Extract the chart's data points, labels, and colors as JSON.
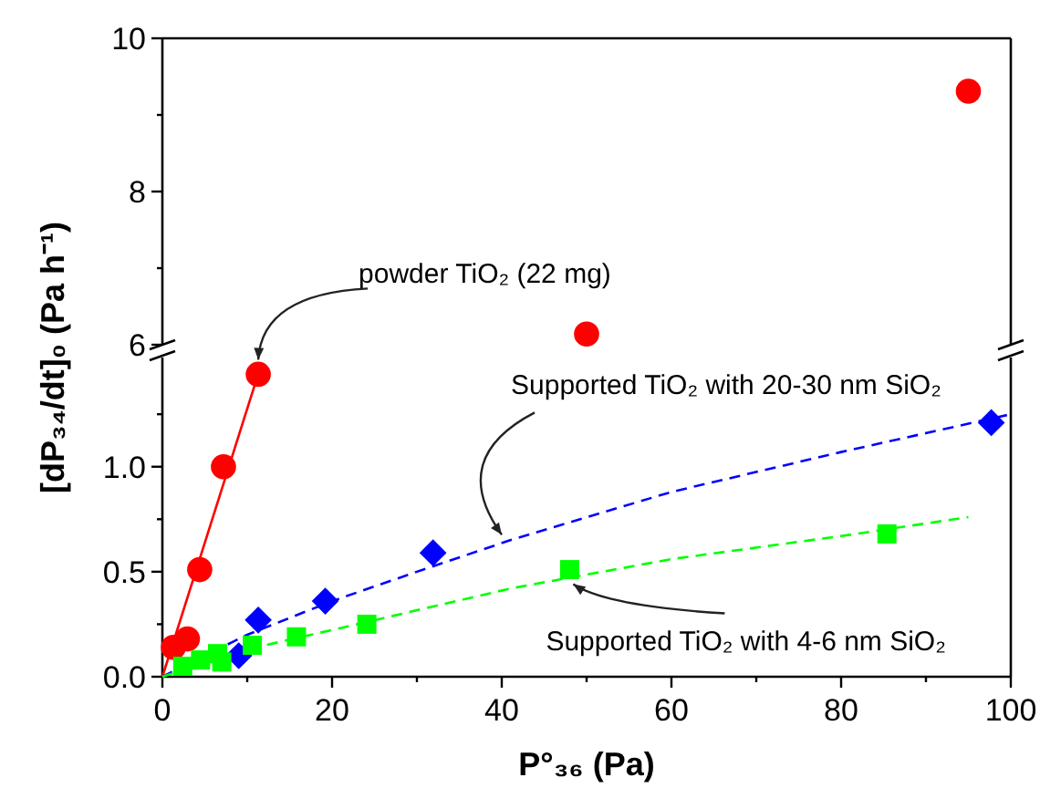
{
  "chart_data": [
    {
      "type": "scatter",
      "xlim": [
        0,
        100
      ],
      "ylim": [
        6,
        10
      ],
      "yticks": [
        6,
        {
          "value": 7,
          "label": null
        },
        8,
        {
          "value": 9,
          "label": null
        },
        10
      ],
      "tick_labels": "y",
      "series": [
        {
          "type": "scatter",
          "color": "#ff0000",
          "marker": "circle",
          "x": [
            50,
            95
          ],
          "values": [
            6.14,
            9.31
          ]
        }
      ]
    },
    {
      "type": "scatter",
      "xlabel": "P°₃₆ (Pa)",
      "ylabel": "[dP₃₄/dt]₀ (Pa h⁻¹)",
      "xlim": [
        0,
        100
      ],
      "ylim": [
        0,
        1.52
      ],
      "xticks": [
        0,
        {
          "value": 10,
          "label": null
        },
        20,
        {
          "value": 30,
          "label": null
        },
        40,
        {
          "value": 50,
          "label": null
        },
        60,
        {
          "value": 70,
          "label": null
        },
        80,
        {
          "value": 90,
          "label": null
        },
        100
      ],
      "yticks": [
        {
          "value": 0,
          "label": "0.0"
        },
        {
          "value": 0.25,
          "label": null
        },
        {
          "value": 0.5,
          "label": "0.5"
        },
        {
          "value": 0.75,
          "label": null
        },
        {
          "value": 1,
          "label": "1.0"
        },
        {
          "value": 1.25,
          "label": null
        }
      ],
      "series": [
        {
          "type": "line",
          "color": "#ff0000",
          "line_style": "solid",
          "x": [
            0,
            11.6
          ],
          "values": [
            0,
            1.48
          ]
        },
        {
          "type": "line",
          "color": "#0000ff",
          "line_style": "dashed",
          "x": [
            0,
            10,
            20,
            30,
            41,
            60,
            80,
            100
          ],
          "values": [
            0,
            0.2,
            0.36,
            0.5,
            0.65,
            0.88,
            1.07,
            1.25
          ]
        },
        {
          "type": "line",
          "color": "#00ff00",
          "line_style": "dashed",
          "x": [
            0,
            10,
            24,
            41,
            60,
            80,
            95
          ],
          "values": [
            0,
            0.13,
            0.26,
            0.42,
            0.56,
            0.67,
            0.76
          ]
        },
        {
          "type": "scatter",
          "color": "#ff0000",
          "marker": "circle",
          "x": [
            1.3,
            2.95,
            4.4,
            7.2,
            11.3
          ],
          "values": [
            0.14,
            0.18,
            0.51,
            1.0,
            1.44
          ]
        },
        {
          "type": "scatter",
          "color": "#0000ff",
          "marker": "diamond",
          "x": [
            9.0,
            11.3,
            19.2,
            31.9,
            97.7
          ],
          "values": [
            0.1,
            0.27,
            0.36,
            0.59,
            1.21
          ]
        },
        {
          "type": "scatter",
          "color": "#00ff00",
          "marker": "square",
          "x": [
            2.4,
            4.5,
            6.5,
            7,
            10.6,
            15.8,
            24.1,
            48.0,
            85.4
          ],
          "values": [
            0.05,
            0.08,
            0.11,
            0.07,
            0.15,
            0.19,
            0.25,
            0.51,
            0.68
          ]
        }
      ],
      "annotations": [
        {
          "text": "powder TiO₂ (22 mg)",
          "x": 11.3,
          "y": 1.44
        },
        {
          "text": "Supported TiO₂ with 20-30 nm SiO₂",
          "x": 40,
          "y": 0.65
        },
        {
          "text": "Supported TiO₂ with 4-6 nm SiO₂",
          "x": 48,
          "y": 0.51
        }
      ]
    }
  ]
}
